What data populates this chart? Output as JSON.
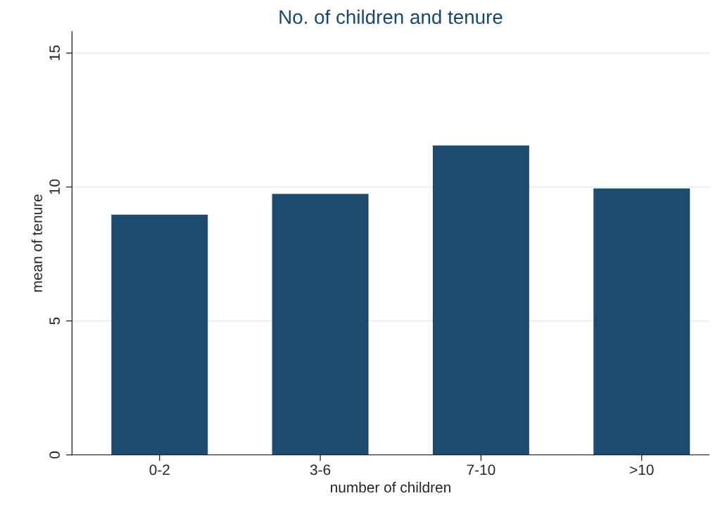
{
  "chart_data": {
    "type": "bar",
    "title": "No. of children and tenure",
    "xlabel": "number of children",
    "ylabel": "mean of tenure",
    "categories": [
      "0-2",
      "3-6",
      "7-10",
      ">10"
    ],
    "values": [
      8.97,
      9.74,
      11.55,
      9.95
    ],
    "color": "#1e4a6e",
    "ylim": [
      0,
      15.8
    ],
    "yticks": [
      0,
      5,
      10,
      15
    ],
    "grid": "y",
    "legend": false
  }
}
